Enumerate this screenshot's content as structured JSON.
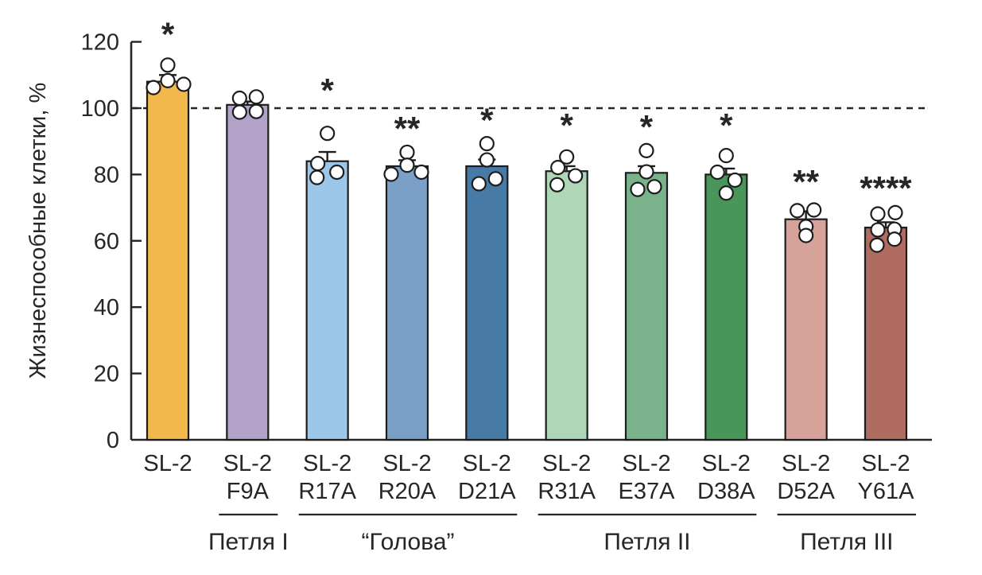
{
  "figure": {
    "background": "#ffffff",
    "axis_color": "#262626",
    "bar_stroke_color": "#1d1d1d",
    "point_fill": "#ffffff",
    "point_stroke": "#1d1d1d"
  },
  "chart_data": {
    "type": "bar",
    "title": "",
    "xlabel": "",
    "ylabel": "Жизнеспособные клетки, %",
    "ylim": [
      0,
      120
    ],
    "yticks": [
      0,
      20,
      40,
      60,
      80,
      100,
      120
    ],
    "grid": false,
    "legend": "none",
    "baseline": {
      "value": 100,
      "style": "dashed"
    },
    "categories": [
      "SL-2",
      "SL-2 F9A",
      "SL-2 R17A",
      "SL-2 R20A",
      "SL-2 D21A",
      "SL-2 R31A",
      "SL-2 E37A",
      "SL-2 D38A",
      "SL-2 D52A",
      "SL-2 Y61A"
    ],
    "bars": [
      {
        "label_line1": "SL-2",
        "label_line2": "",
        "value": 108,
        "error": 2,
        "significance": "*",
        "sig_v": 122,
        "color": "#F2B84B",
        "points": [
          {
            "dx": -18,
            "v": 106.2
          },
          {
            "dx": 0,
            "v": 108.3
          },
          {
            "dx": 20,
            "v": 107.2
          },
          {
            "dx": 0,
            "v": 113
          }
        ]
      },
      {
        "label_line1": "SL-2",
        "label_line2": "F9A",
        "value": 101,
        "error": 1,
        "significance": "",
        "sig_v": null,
        "color": "#B3A2C7",
        "points": [
          {
            "dx": -10,
            "v": 103
          },
          {
            "dx": 11,
            "v": 103.4
          },
          {
            "dx": -10,
            "v": 98.8
          },
          {
            "dx": 11,
            "v": 99
          }
        ]
      },
      {
        "label_line1": "SL-2",
        "label_line2": "R17A",
        "value": 84,
        "error": 2.8,
        "significance": "*",
        "sig_v": 105,
        "color": "#9DC7E8",
        "points": [
          {
            "dx": 0,
            "v": 92.4
          },
          {
            "dx": -12,
            "v": 83.3
          },
          {
            "dx": -13,
            "v": 79.1
          },
          {
            "dx": 12,
            "v": 80.7
          }
        ]
      },
      {
        "label_line1": "SL-2",
        "label_line2": "R20A",
        "value": 82.5,
        "error": 1.8,
        "significance": "**",
        "sig_v": 93.5,
        "color": "#7BA0C8",
        "points": [
          {
            "dx": 0,
            "v": 86.7
          },
          {
            "dx": 0,
            "v": 82.8
          },
          {
            "dx": -20,
            "v": 80.1
          },
          {
            "dx": 18,
            "v": 80.7
          }
        ]
      },
      {
        "label_line1": "SL-2",
        "label_line2": "D21A",
        "value": 82.5,
        "error": 2,
        "significance": "*",
        "sig_v": 96,
        "color": "#487AA6",
        "points": [
          {
            "dx": 0,
            "v": 89.3
          },
          {
            "dx": 0,
            "v": 84.4
          },
          {
            "dx": -10,
            "v": 77.2
          },
          {
            "dx": 11,
            "v": 78.7
          }
        ]
      },
      {
        "label_line1": "SL-2",
        "label_line2": "R31A",
        "value": 81,
        "error": 1.5,
        "significance": "*",
        "sig_v": 94.5,
        "color": "#AFD7B7",
        "points": [
          {
            "dx": 0,
            "v": 85.3
          },
          {
            "dx": -11,
            "v": 82.1
          },
          {
            "dx": 11,
            "v": 79.6
          },
          {
            "dx": -12,
            "v": 76.9
          }
        ]
      },
      {
        "label_line1": "SL-2",
        "label_line2": "E37A",
        "value": 80.5,
        "error": 2,
        "significance": "*",
        "sig_v": 94,
        "color": "#7AB28C",
        "points": [
          {
            "dx": 0,
            "v": 87.2
          },
          {
            "dx": 0,
            "v": 80.8
          },
          {
            "dx": -11,
            "v": 75.5
          },
          {
            "dx": 10,
            "v": 76.3
          }
        ]
      },
      {
        "label_line1": "SL-2",
        "label_line2": "D38A",
        "value": 80,
        "error": 1.8,
        "significance": "*",
        "sig_v": 94.5,
        "color": "#489659",
        "points": [
          {
            "dx": 0,
            "v": 85.7
          },
          {
            "dx": -11,
            "v": 80.7
          },
          {
            "dx": 11,
            "v": 78.3
          },
          {
            "dx": 0,
            "v": 74.4
          }
        ]
      },
      {
        "label_line1": "SL-2",
        "label_line2": "D52A",
        "value": 66.5,
        "error": 2.4,
        "significance": "**",
        "sig_v": 77.5,
        "color": "#D7A29A",
        "points": [
          {
            "dx": -11,
            "v": 69.1
          },
          {
            "dx": 10,
            "v": 69.3
          },
          {
            "dx": 0,
            "v": 64.3
          },
          {
            "dx": 0,
            "v": 61.6
          }
        ]
      },
      {
        "label_line1": "SL-2",
        "label_line2": "Y61A",
        "value": 64,
        "error": 1.6,
        "significance": "****",
        "sig_v": 75.5,
        "color": "#B06C61",
        "points": [
          {
            "dx": -10,
            "v": 68.1
          },
          {
            "dx": 12,
            "v": 68.5
          },
          {
            "dx": -10,
            "v": 63.3
          },
          {
            "dx": 11,
            "v": 63.5
          },
          {
            "dx": 11,
            "v": 60.5
          },
          {
            "dx": -11,
            "v": 58.7
          }
        ]
      }
    ],
    "groups": [
      {
        "label": "Петля I",
        "from": 1,
        "to": 1
      },
      {
        "label": "“Голова”",
        "from": 2,
        "to": 4
      },
      {
        "label": "Петля II",
        "from": 5,
        "to": 7
      },
      {
        "label": "Петля III",
        "from": 8,
        "to": 9
      }
    ]
  }
}
